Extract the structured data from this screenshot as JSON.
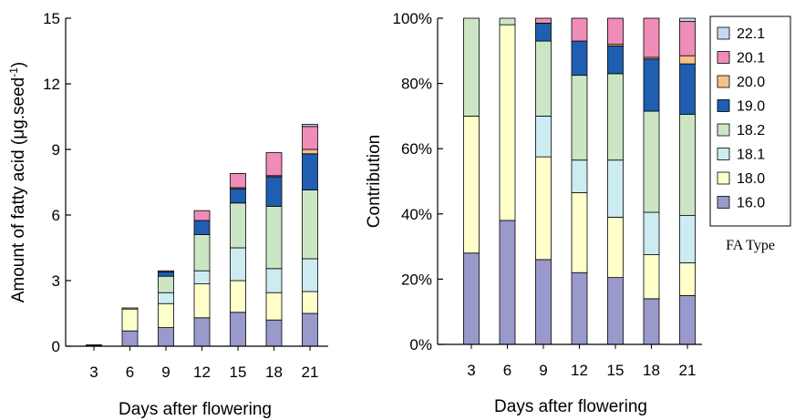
{
  "chart_data": [
    {
      "type": "bar",
      "stacked": true,
      "ylabel": "Amount of fatty acid (μg.seed",
      "ylabel_sup": "-1",
      "ylabel_close": ")",
      "xlabel": "Days after flowering",
      "ylim": [
        0,
        15
      ],
      "yticks": [
        "0",
        "3",
        "6",
        "9",
        "12",
        "15"
      ],
      "categories": [
        "3",
        "6",
        "9",
        "12",
        "15",
        "18",
        "21"
      ],
      "series": [
        {
          "name": "16.0",
          "values": [
            0.02,
            0.7,
            0.85,
            1.3,
            1.55,
            1.2,
            1.5
          ]
        },
        {
          "name": "18.0",
          "values": [
            0.03,
            1.0,
            1.1,
            1.55,
            1.45,
            1.25,
            1.0
          ]
        },
        {
          "name": "18.1",
          "values": [
            0,
            0,
            0.5,
            0.6,
            1.5,
            1.1,
            1.5
          ]
        },
        {
          "name": "18.2",
          "values": [
            0.01,
            0.05,
            0.75,
            1.65,
            2.05,
            2.85,
            3.15
          ]
        },
        {
          "name": "19.0",
          "values": [
            0,
            0,
            0.2,
            0.65,
            0.65,
            1.35,
            1.65
          ]
        },
        {
          "name": "20.0",
          "values": [
            0,
            0,
            0,
            0,
            0.05,
            0.05,
            0.2
          ]
        },
        {
          "name": "20.1",
          "values": [
            0,
            0,
            0.05,
            0.45,
            0.65,
            1.05,
            1.05
          ]
        },
        {
          "name": "22.1",
          "values": [
            0,
            0,
            0,
            0,
            0,
            0,
            0.1
          ]
        }
      ],
      "grid": false
    },
    {
      "type": "bar",
      "stacked": true,
      "percent": true,
      "ylabel": "Contribution",
      "xlabel": "Days after flowering",
      "ylim": [
        0,
        100
      ],
      "yticks": [
        "0%",
        "20%",
        "40%",
        "60%",
        "80%",
        "100%"
      ],
      "categories": [
        "3",
        "6",
        "9",
        "12",
        "15",
        "18",
        "21"
      ],
      "series": [
        {
          "name": "16.0",
          "values": [
            28,
            38,
            26,
            22,
            20.5,
            14,
            15
          ]
        },
        {
          "name": "18.0",
          "values": [
            42,
            60,
            31.5,
            24.5,
            18.5,
            13.5,
            10
          ]
        },
        {
          "name": "18.1",
          "values": [
            0,
            0,
            12.5,
            10,
            17.5,
            13,
            14.5
          ]
        },
        {
          "name": "18.2",
          "values": [
            30,
            2,
            23,
            26,
            26.5,
            31,
            31
          ]
        },
        {
          "name": "19.0",
          "values": [
            0,
            0,
            5.5,
            10.5,
            8.5,
            16,
            15.5
          ]
        },
        {
          "name": "20.0",
          "values": [
            0,
            0,
            0,
            0,
            0.5,
            0.5,
            2.5
          ]
        },
        {
          "name": "20.1",
          "values": [
            0,
            0,
            1.5,
            7,
            8,
            12,
            10.5
          ]
        },
        {
          "name": "22.1",
          "values": [
            0,
            0,
            0,
            0,
            0,
            0,
            1
          ]
        }
      ],
      "legend": {
        "title": "FA Type",
        "placement": "right",
        "order": [
          "22.1",
          "20.1",
          "20.0",
          "19.0",
          "18.2",
          "18.1",
          "18.0",
          "16.0"
        ]
      },
      "grid": false
    }
  ],
  "colors": {
    "16.0": "#9999cc",
    "18.0": "#ffffcc",
    "18.1": "#ccecf2",
    "18.2": "#cce6c4",
    "19.0": "#1f5eb0",
    "20.0": "#f5c08a",
    "20.1": "#f08cb8",
    "22.1": "#c5d8f0",
    "outline": "#000000"
  }
}
